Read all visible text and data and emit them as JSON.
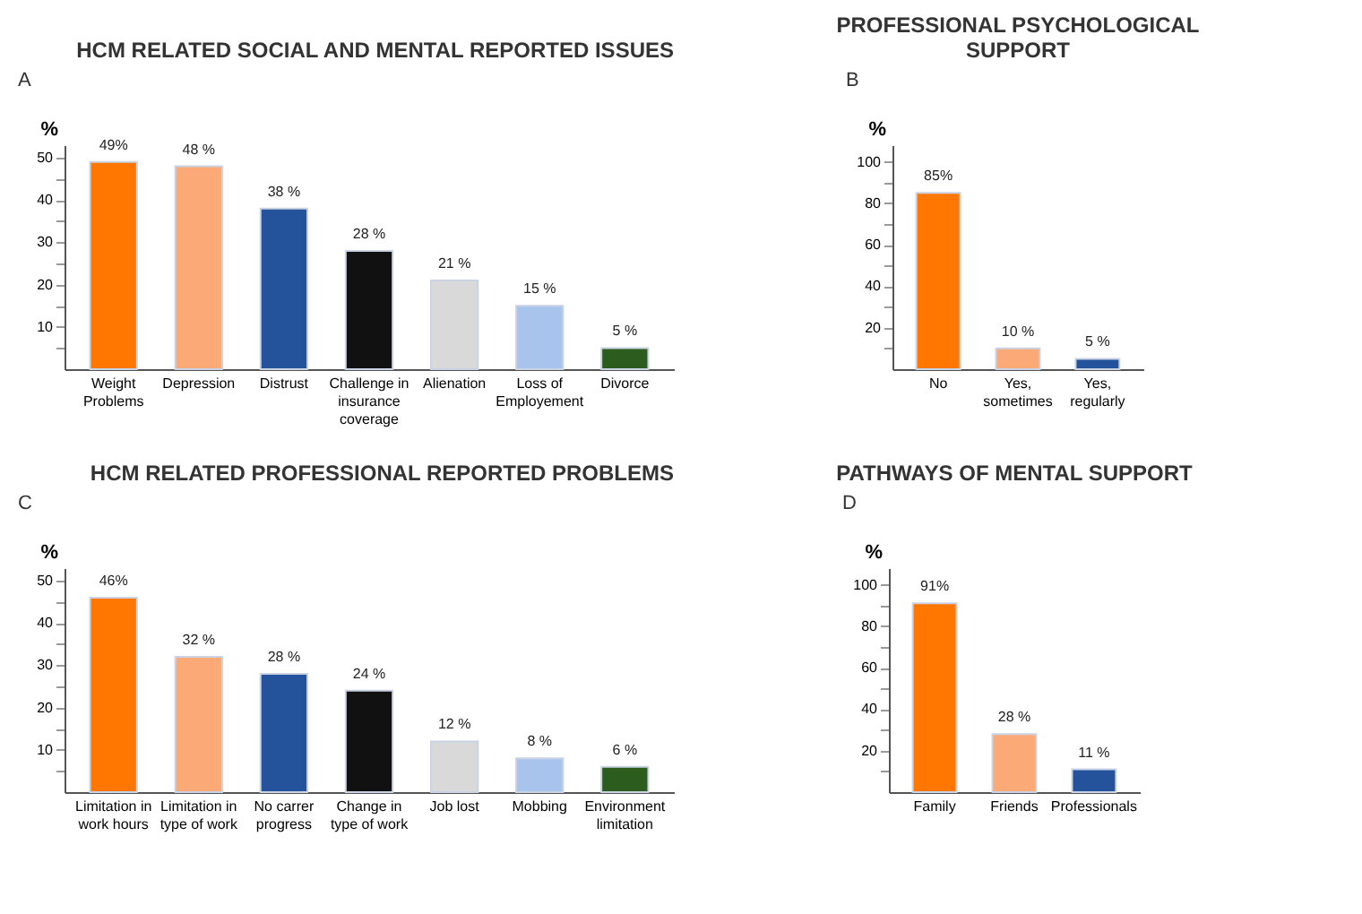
{
  "chart_data": [
    {
      "type": "bar",
      "title": "HCM RELATED SOCIAL AND MENTAL REPORTED ISSUES",
      "annotations": [
        "A"
      ],
      "ylabel": "%",
      "categories": [
        "Weight Problems",
        "Depression",
        "Distrust",
        "Challenge in insurance coverage",
        "Alienation",
        "Loss of Employement",
        "Divorce"
      ],
      "values": [
        49,
        48,
        38,
        28,
        21,
        15,
        5
      ],
      "colors": [
        "#ff7700",
        "#fbaa77",
        "#24529b",
        "#111111",
        "#d9d9d9",
        "#a9c4ec",
        "#2d5c1f"
      ],
      "value_labels": [
        "49%",
        "48 %",
        "38 %",
        "28 %",
        "21 %",
        "15 %",
        "5 %"
      ],
      "ylim": [
        0,
        53
      ],
      "yticks": [
        {
          "value": 5,
          "label": null
        },
        10,
        {
          "value": 15,
          "label": null
        },
        20,
        {
          "value": 25,
          "label": null
        },
        30,
        {
          "value": 35,
          "label": null
        },
        40,
        {
          "value": 45,
          "label": null
        },
        50
      ],
      "grid": false
    },
    {
      "type": "bar",
      "title": "PROFESSIONAL PSYCHOLOGICAL SUPPORT",
      "annotations": [
        "B"
      ],
      "ylabel": "%",
      "categories": [
        "No",
        "Yes, sometimes",
        "Yes, regularly"
      ],
      "values": [
        85,
        10,
        5
      ],
      "colors": [
        "#ff7700",
        "#fbaa77",
        "#24529b"
      ],
      "value_labels": [
        "85%",
        "10 %",
        "5 %"
      ],
      "ylim": [
        0,
        108
      ],
      "yticks": [
        {
          "value": 10,
          "label": null
        },
        20,
        {
          "value": 30,
          "label": null
        },
        40,
        {
          "value": 50,
          "label": null
        },
        60,
        {
          "value": 70,
          "label": null
        },
        80,
        {
          "value": 90,
          "label": null
        },
        100
      ],
      "grid": false
    },
    {
      "type": "bar",
      "title": "HCM RELATED PROFESSIONAL REPORTED PROBLEMS",
      "annotations": [
        "C"
      ],
      "ylabel": "%",
      "categories": [
        "Limitation in work hours",
        "Limitation in type of work",
        "No carrer progress",
        "Change in type of work",
        "Job lost",
        "Mobbing",
        "Environment limitation"
      ],
      "values": [
        46,
        32,
        28,
        24,
        12,
        8,
        6
      ],
      "colors": [
        "#ff7700",
        "#fbaa77",
        "#24529b",
        "#111111",
        "#d9d9d9",
        "#a9c4ec",
        "#2d5c1f"
      ],
      "value_labels": [
        "46%",
        "32 %",
        "28 %",
        "24 %",
        "12 %",
        "8 %",
        "6 %"
      ],
      "ylim": [
        0,
        53
      ],
      "yticks": [
        {
          "value": 5,
          "label": null
        },
        10,
        {
          "value": 15,
          "label": null
        },
        20,
        {
          "value": 25,
          "label": null
        },
        30,
        {
          "value": 35,
          "label": null
        },
        40,
        {
          "value": 45,
          "label": null
        },
        50
      ],
      "grid": false
    },
    {
      "type": "bar",
      "title": "PATHWAYS OF MENTAL SUPPORT",
      "annotations": [
        "D"
      ],
      "ylabel": "%",
      "categories": [
        "Family",
        "Friends",
        "Professionals"
      ],
      "values": [
        91,
        28,
        11
      ],
      "colors": [
        "#ff7700",
        "#fbaa77",
        "#24529b"
      ],
      "value_labels": [
        "91%",
        "28 %",
        "11 %"
      ],
      "ylim": [
        0,
        108
      ],
      "yticks": [
        {
          "value": 10,
          "label": null
        },
        20,
        {
          "value": 30,
          "label": null
        },
        40,
        {
          "value": 50,
          "label": null
        },
        60,
        {
          "value": 70,
          "label": null
        },
        80,
        {
          "value": 90,
          "label": null
        },
        100
      ],
      "grid": false
    }
  ]
}
